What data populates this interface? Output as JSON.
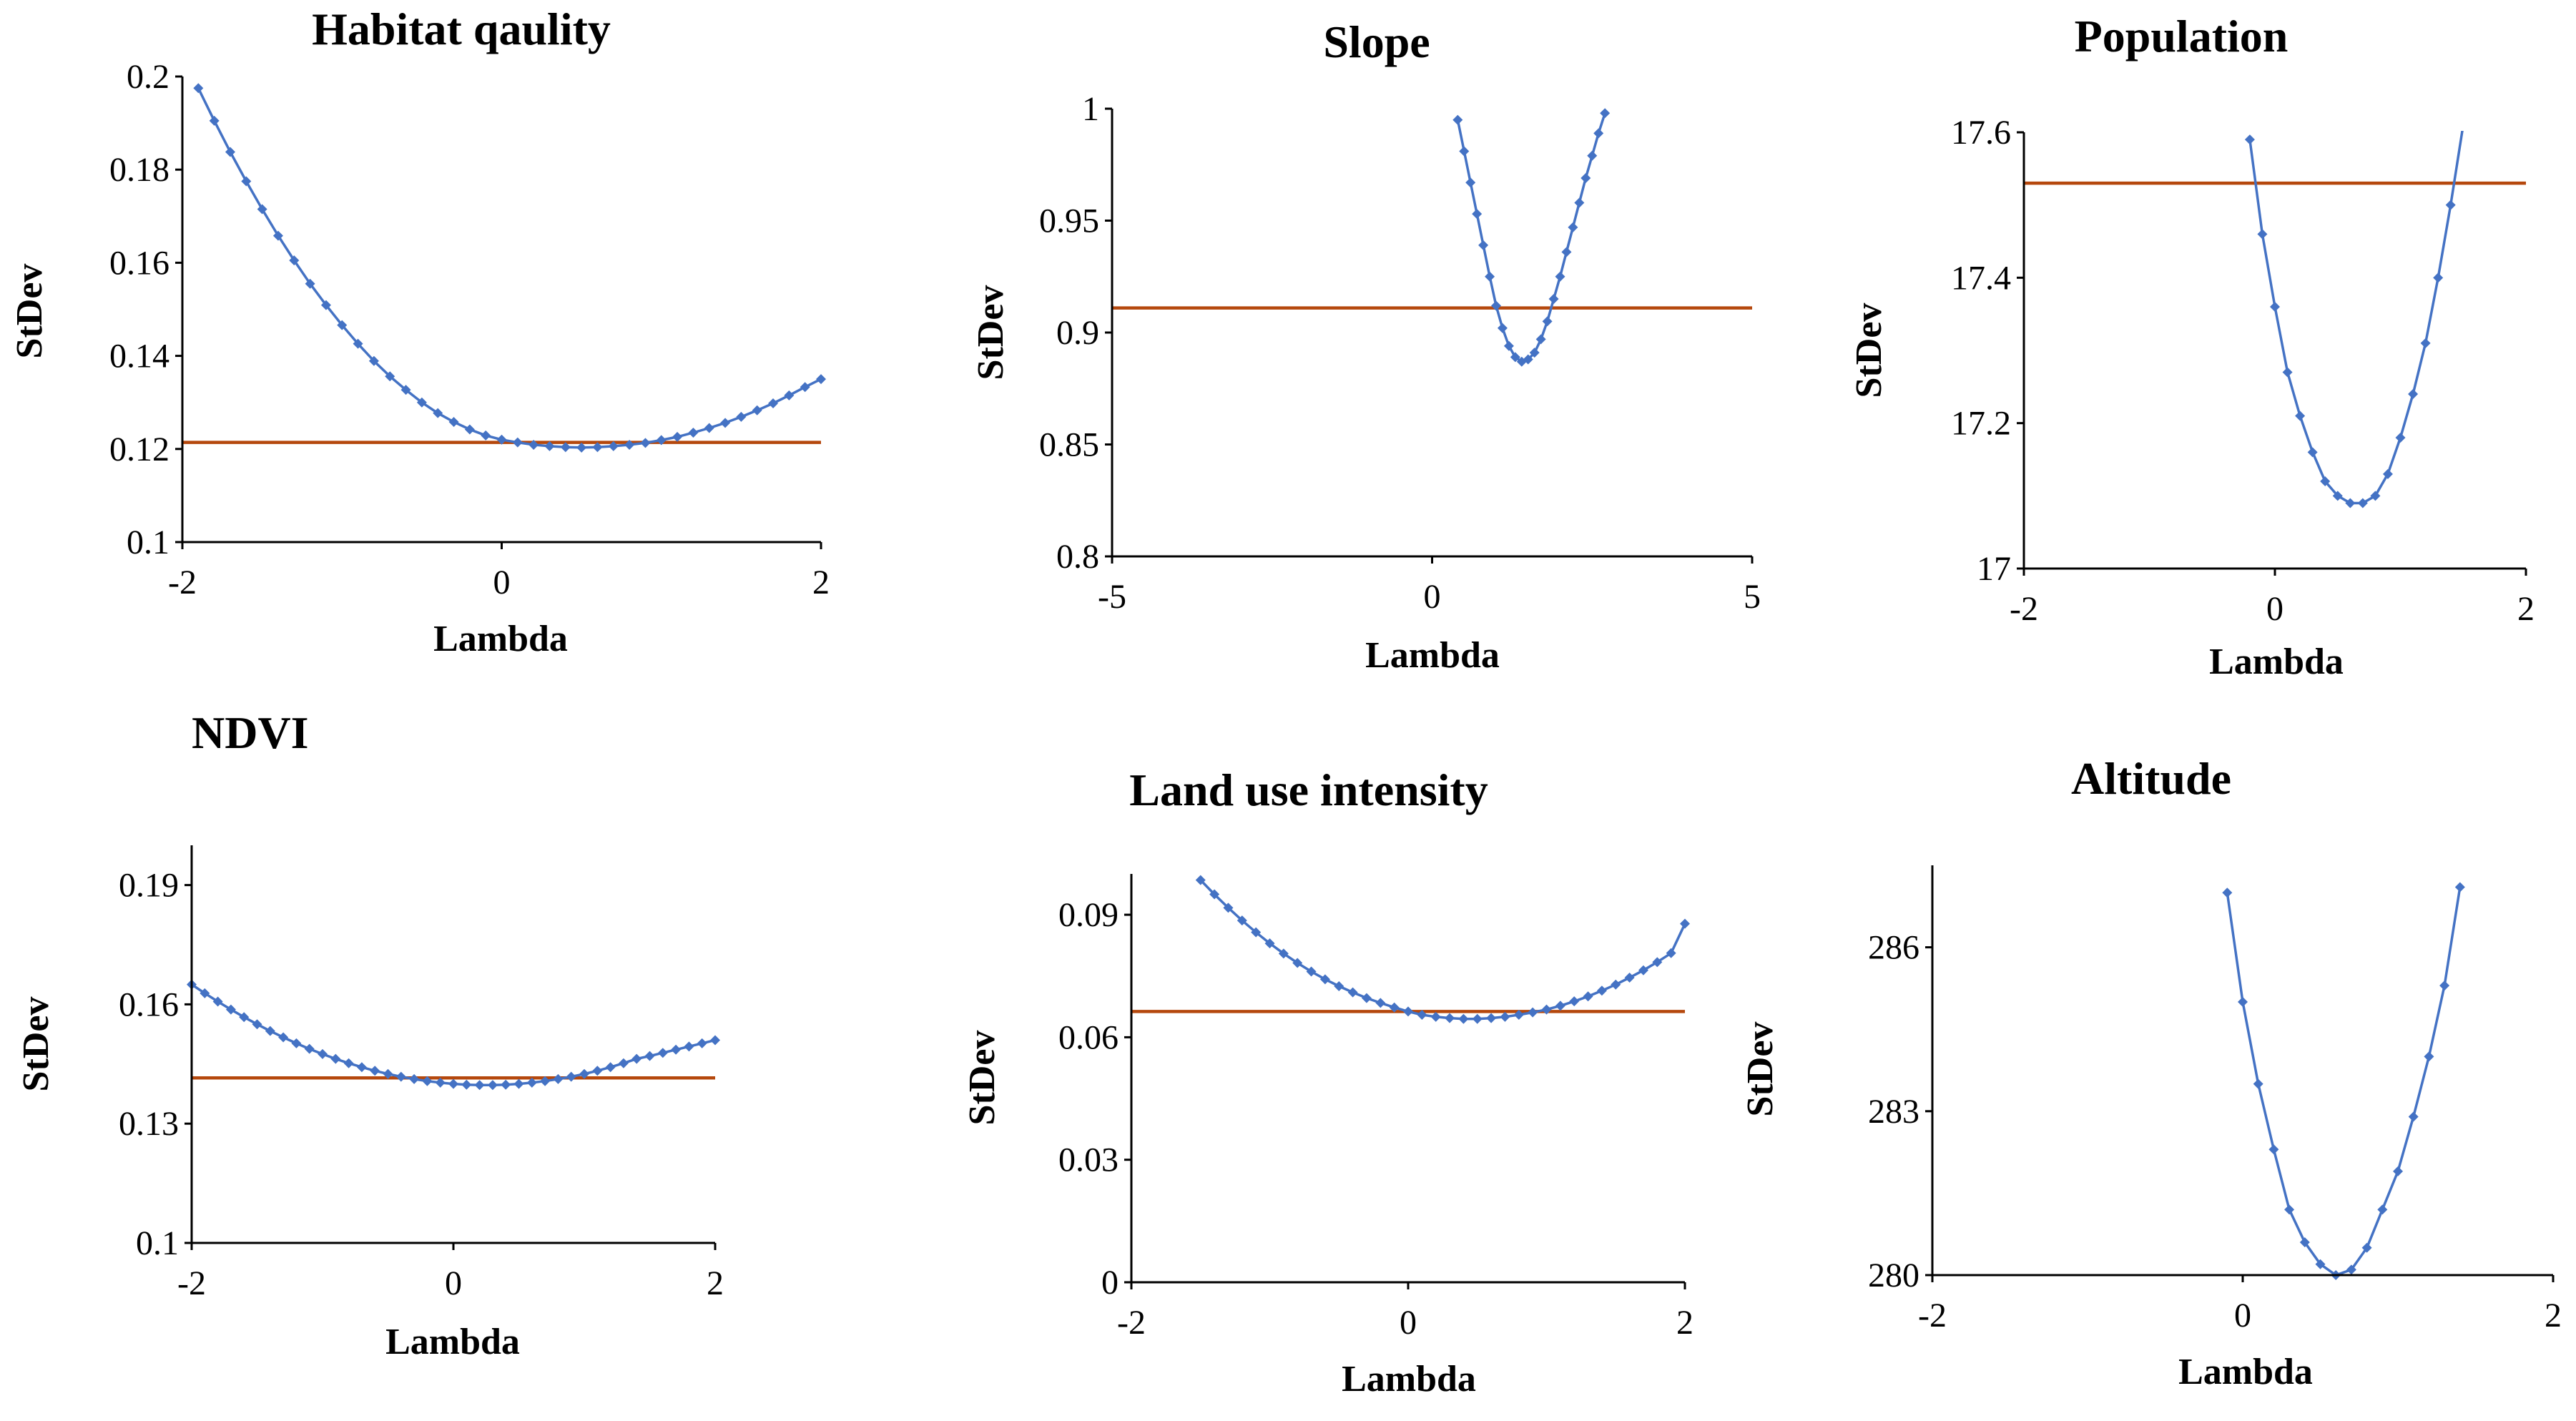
{
  "chart_data": [
    {
      "type": "line",
      "title": "Habitat qaulity",
      "xlabel": "Lambda",
      "ylabel": "StDev",
      "xlim": [
        -2,
        2
      ],
      "ylim": [
        0.1,
        0.2
      ],
      "xticks": [
        -2,
        0,
        2
      ],
      "xtick_labels": [
        "-2",
        "0",
        "2"
      ],
      "yticks": [
        0.1,
        0.12,
        0.14,
        0.16,
        0.18,
        0.2
      ],
      "ytick_labels": [
        "0.1",
        "0.12",
        "0.14",
        "0.16",
        "0.18",
        "0.2"
      ],
      "series": [
        {
          "style": "curve-with-markers",
          "color": "#4472C4",
          "x": [
            -1.9,
            -1.8,
            -1.7,
            -1.6,
            -1.5,
            -1.4,
            -1.3,
            -1.2,
            -1.1,
            -1.0,
            -0.9,
            -0.8,
            -0.7,
            -0.6,
            -0.5,
            -0.4,
            -0.3,
            -0.2,
            -0.1,
            0.0,
            0.1,
            0.2,
            0.3,
            0.4,
            0.5,
            0.6,
            0.7,
            0.8,
            0.9,
            1.0,
            1.1,
            1.2,
            1.3,
            1.4,
            1.5,
            1.6,
            1.7,
            1.8,
            1.9,
            2.0
          ],
          "y": [
            0.1975,
            0.1905,
            0.1838,
            0.1775,
            0.1715,
            0.1658,
            0.1605,
            0.1555,
            0.1509,
            0.1466,
            0.1426,
            0.1389,
            0.1356,
            0.1327,
            0.13,
            0.1277,
            0.1258,
            0.1242,
            0.1229,
            0.122,
            0.1214,
            0.1209,
            0.1206,
            0.1204,
            0.1203,
            0.1204,
            0.1206,
            0.1209,
            0.1213,
            0.1219,
            0.1226,
            0.1235,
            0.1245,
            0.1256,
            0.1269,
            0.1283,
            0.1298,
            0.1315,
            0.1333,
            0.135
          ]
        },
        {
          "style": "reference-line",
          "color": "#B5480D",
          "x": [
            -2,
            2
          ],
          "y": [
            0.1214,
            0.1214
          ]
        }
      ]
    },
    {
      "type": "line",
      "title": "Slope",
      "xlabel": "Lambda",
      "ylabel": "StDev",
      "xlim": [
        -5,
        5
      ],
      "ylim": [
        0.8,
        1
      ],
      "xticks": [
        -5,
        0,
        5
      ],
      "xtick_labels": [
        "-5",
        "0",
        "5"
      ],
      "yticks": [
        0.8,
        0.85,
        0.9,
        0.95,
        1
      ],
      "ytick_labels": [
        "0.8",
        "0.85",
        "0.9",
        "0.95",
        "1"
      ],
      "series": [
        {
          "style": "curve-with-markers",
          "color": "#4472C4",
          "x": [
            0.4,
            0.5,
            0.6,
            0.7,
            0.8,
            0.9,
            1.0,
            1.1,
            1.2,
            1.3,
            1.4,
            1.5,
            1.6,
            1.7,
            1.8,
            1.9,
            2.0,
            2.1,
            2.2,
            2.3,
            2.4,
            2.5,
            2.6,
            2.7
          ],
          "y": [
            0.995,
            0.981,
            0.967,
            0.953,
            0.939,
            0.925,
            0.912,
            0.902,
            0.894,
            0.889,
            0.887,
            0.888,
            0.891,
            0.897,
            0.905,
            0.915,
            0.925,
            0.936,
            0.947,
            0.958,
            0.969,
            0.979,
            0.989,
            0.998
          ]
        },
        {
          "style": "reference-line",
          "color": "#B5480D",
          "x": [
            -5,
            5
          ],
          "y": [
            0.911,
            0.911
          ]
        }
      ]
    },
    {
      "type": "line",
      "title": "Population",
      "xlabel": "Lambda",
      "ylabel": "StDev",
      "xlim": [
        -2,
        2
      ],
      "ylim": [
        17,
        17.6
      ],
      "xticks": [
        -2,
        0,
        2
      ],
      "xtick_labels": [
        "-2",
        "0",
        "2"
      ],
      "yticks": [
        17,
        17.2,
        17.4,
        17.6
      ],
      "ytick_labels": [
        "17",
        "17.2",
        "17.4",
        "17.6"
      ],
      "series": [
        {
          "style": "curve-with-markers",
          "color": "#4472C4",
          "x": [
            -0.2,
            -0.1,
            0.0,
            0.1,
            0.2,
            0.3,
            0.4,
            0.5,
            0.6,
            0.7,
            0.8,
            0.9,
            1.0,
            1.1,
            1.2,
            1.3,
            1.4,
            1.5
          ],
          "y": [
            17.59,
            17.46,
            17.36,
            17.27,
            17.21,
            17.16,
            17.12,
            17.1,
            17.09,
            17.09,
            17.1,
            17.13,
            17.18,
            17.24,
            17.31,
            17.4,
            17.5,
            17.61
          ]
        },
        {
          "style": "reference-line",
          "color": "#B5480D",
          "x": [
            -2,
            2
          ],
          "y": [
            17.53,
            17.53
          ]
        }
      ]
    },
    {
      "type": "line",
      "title": "NDVI",
      "xlabel": "Lambda",
      "ylabel": "StDev",
      "xlim": [
        -2,
        2
      ],
      "ylim": [
        0.1,
        0.2
      ],
      "xticks": [
        -2,
        0,
        2
      ],
      "xtick_labels": [
        "-2",
        "0",
        "2"
      ],
      "yticks": [
        0.1,
        0.13,
        0.16,
        0.19
      ],
      "ytick_labels": [
        "0.1",
        "0.13",
        "0.16",
        "0.19"
      ],
      "series": [
        {
          "style": "curve-with-markers",
          "color": "#4472C4",
          "x": [
            -2.0,
            -1.9,
            -1.8,
            -1.7,
            -1.6,
            -1.5,
            -1.4,
            -1.3,
            -1.2,
            -1.1,
            -1.0,
            -0.9,
            -0.8,
            -0.7,
            -0.6,
            -0.5,
            -0.4,
            -0.3,
            -0.2,
            -0.1,
            0.0,
            0.1,
            0.2,
            0.3,
            0.4,
            0.5,
            0.6,
            0.7,
            0.8,
            0.9,
            1.0,
            1.1,
            1.2,
            1.3,
            1.4,
            1.5,
            1.6,
            1.7,
            1.8,
            1.9,
            2.0
          ],
          "y": [
            0.165,
            0.1628,
            0.1607,
            0.1587,
            0.1568,
            0.155,
            0.1533,
            0.1517,
            0.1502,
            0.1488,
            0.1475,
            0.1463,
            0.1452,
            0.1442,
            0.1433,
            0.1425,
            0.1418,
            0.1412,
            0.1407,
            0.1403,
            0.14,
            0.1398,
            0.1397,
            0.1397,
            0.1398,
            0.14,
            0.1403,
            0.1407,
            0.1412,
            0.1418,
            0.1425,
            0.1433,
            0.1442,
            0.1452,
            0.1463,
            0.147,
            0.1478,
            0.1486,
            0.1494,
            0.1502,
            0.151
          ]
        },
        {
          "style": "reference-line",
          "color": "#B5480D",
          "x": [
            -2,
            2
          ],
          "y": [
            0.1415,
            0.1415
          ]
        }
      ]
    },
    {
      "type": "line",
      "title": "Land use intensity",
      "xlabel": "Lambda",
      "ylabel": "StDev",
      "xlim": [
        -2,
        2
      ],
      "ylim": [
        0,
        0.1
      ],
      "xticks": [
        -2,
        0,
        2
      ],
      "xtick_labels": [
        "-2",
        "0",
        "2"
      ],
      "yticks": [
        0,
        0.03,
        0.06,
        0.09
      ],
      "ytick_labels": [
        "0",
        "0.03",
        "0.06",
        "0.09"
      ],
      "series": [
        {
          "style": "curve-with-markers",
          "color": "#4472C4",
          "x": [
            -1.5,
            -1.4,
            -1.3,
            -1.2,
            -1.1,
            -1.0,
            -0.9,
            -0.8,
            -0.7,
            -0.6,
            -0.5,
            -0.4,
            -0.3,
            -0.2,
            -0.1,
            0.0,
            0.1,
            0.2,
            0.3,
            0.4,
            0.5,
            0.6,
            0.7,
            0.8,
            0.9,
            1.0,
            1.1,
            1.2,
            1.3,
            1.4,
            1.5,
            1.6,
            1.7,
            1.8,
            1.9,
            2.0
          ],
          "y": [
            0.0985,
            0.095,
            0.0917,
            0.0886,
            0.0857,
            0.083,
            0.0805,
            0.0782,
            0.0761,
            0.0742,
            0.0725,
            0.071,
            0.0696,
            0.0684,
            0.0673,
            0.0663,
            0.0655,
            0.065,
            0.0647,
            0.0645,
            0.0645,
            0.0647,
            0.065,
            0.0655,
            0.0661,
            0.0668,
            0.0677,
            0.0688,
            0.07,
            0.0714,
            0.0729,
            0.0746,
            0.0764,
            0.0784,
            0.0806,
            0.0878
          ]
        },
        {
          "style": "reference-line",
          "color": "#B5480D",
          "x": [
            -2,
            2
          ],
          "y": [
            0.0663,
            0.0663
          ]
        }
      ]
    },
    {
      "type": "line",
      "title": "Altitude",
      "xlabel": "Lambda",
      "ylabel": "StDev",
      "xlim": [
        -2,
        2
      ],
      "ylim": [
        280,
        287.5
      ],
      "xticks": [
        -2,
        0,
        2
      ],
      "xtick_labels": [
        "-2",
        "0",
        "2"
      ],
      "yticks": [
        280,
        283,
        286
      ],
      "ytick_labels": [
        "280",
        "283",
        "286"
      ],
      "series": [
        {
          "style": "curve-with-markers",
          "color": "#4472C4",
          "x": [
            -0.1,
            0.0,
            0.1,
            0.2,
            0.3,
            0.4,
            0.5,
            0.6,
            0.7,
            0.8,
            0.9,
            1.0,
            1.1,
            1.2,
            1.3,
            1.4
          ],
          "y": [
            287.0,
            285.0,
            283.5,
            282.3,
            281.2,
            280.6,
            280.2,
            280.0,
            280.1,
            280.5,
            281.2,
            281.9,
            282.9,
            284.0,
            285.3,
            287.1
          ]
        }
      ]
    }
  ]
}
